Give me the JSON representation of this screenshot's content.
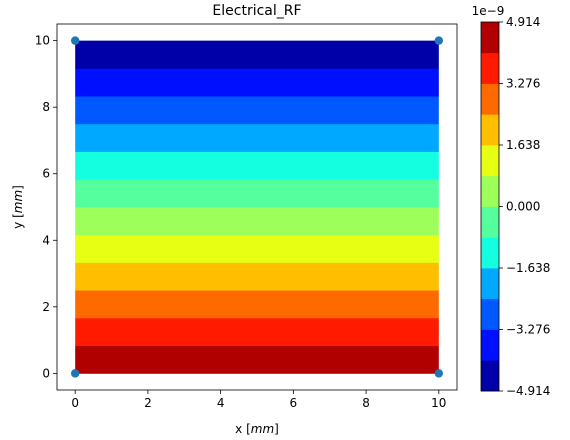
{
  "chart_data": {
    "type": "heatmap",
    "title": "Electrical_RF",
    "xlabel": "x [mm]",
    "ylabel": "y [mm]",
    "xlabel_parts": {
      "prefix": "x [",
      "unit": "mm",
      "suffix": "]"
    },
    "ylabel_parts": {
      "prefix": "y [",
      "unit": "mm",
      "suffix": "]"
    },
    "xlim": [
      -0.5,
      10.5
    ],
    "ylim": [
      -0.5,
      10.5
    ],
    "xticks": [
      0,
      2,
      4,
      6,
      8,
      10
    ],
    "yticks": [
      0,
      2,
      4,
      6,
      8,
      10
    ],
    "xtick_labels": [
      "0",
      "2",
      "4",
      "6",
      "8",
      "10"
    ],
    "ytick_labels": [
      "0",
      "2",
      "4",
      "6",
      "8",
      "10"
    ],
    "grid": false,
    "field": {
      "x_range": [
        0,
        10
      ],
      "y_range": [
        0,
        10
      ],
      "direction": "value decreases with y (max at y=0, min at y=10)",
      "bands": [
        {
          "y_from": 0.0,
          "y_to": 0.8333,
          "color": "#b00000"
        },
        {
          "y_from": 0.8333,
          "y_to": 1.6667,
          "color": "#ff1a00"
        },
        {
          "y_from": 1.6667,
          "y_to": 2.5,
          "color": "#ff6a00"
        },
        {
          "y_from": 2.5,
          "y_to": 3.3333,
          "color": "#ffbe00"
        },
        {
          "y_from": 3.3333,
          "y_to": 4.1667,
          "color": "#e6ff12"
        },
        {
          "y_from": 4.1667,
          "y_to": 5.0,
          "color": "#9cff5a"
        },
        {
          "y_from": 5.0,
          "y_to": 5.8333,
          "color": "#56ff9e"
        },
        {
          "y_from": 5.8333,
          "y_to": 6.6667,
          "color": "#14ffe0"
        },
        {
          "y_from": 6.6667,
          "y_to": 7.5,
          "color": "#00a8ff"
        },
        {
          "y_from": 7.5,
          "y_to": 8.3333,
          "color": "#0058ff"
        },
        {
          "y_from": 8.3333,
          "y_to": 9.1667,
          "color": "#0010ff"
        },
        {
          "y_from": 9.1667,
          "y_to": 10.0,
          "color": "#0000a8"
        }
      ]
    },
    "points": [
      {
        "x": 0,
        "y": 10
      },
      {
        "x": 10,
        "y": 10
      },
      {
        "x": 0,
        "y": 0
      },
      {
        "x": 10,
        "y": 0
      }
    ],
    "point_color": "#1f77b4",
    "colorbar": {
      "offset_label": "1e−9",
      "range": [
        -4.914,
        4.914
      ],
      "levels": 12,
      "ticks": [
        -4.914,
        -3.276,
        -1.638,
        0.0,
        1.638,
        3.276,
        4.914
      ],
      "tick_labels": [
        "−4.914",
        "−3.276",
        "−1.638",
        "0.000",
        "1.638",
        "3.276",
        "4.914"
      ],
      "colors_bottom_to_top": [
        "#0000a8",
        "#0010ff",
        "#0058ff",
        "#00a8ff",
        "#14ffe0",
        "#56ff9e",
        "#9cff5a",
        "#e6ff12",
        "#ffbe00",
        "#ff6a00",
        "#ff1a00",
        "#b00000"
      ],
      "placement": "right"
    }
  }
}
